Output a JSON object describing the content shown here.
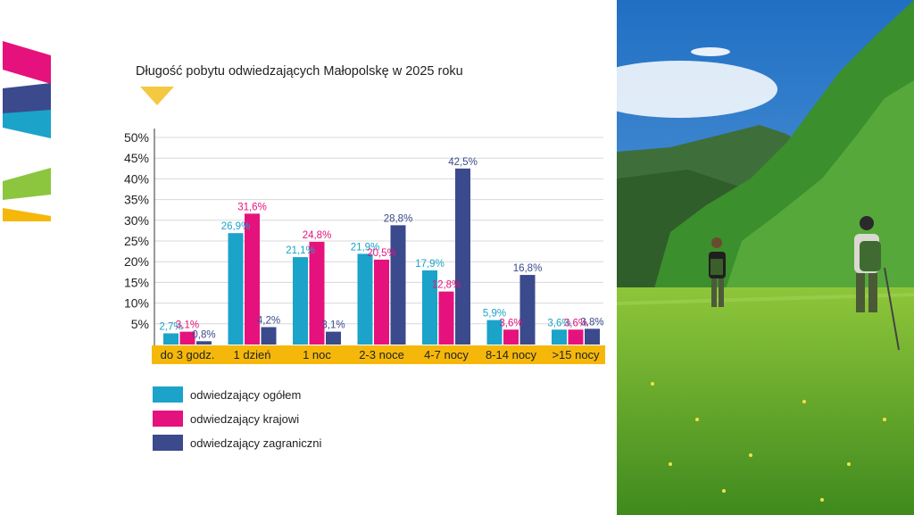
{
  "chart_data": {
    "type": "bar",
    "title": "Długość pobytu odwiedzających Małopolskę w 2025 roku",
    "categories": [
      "do 3 godz.",
      "1 dzień",
      "1 noc",
      "2-3 noce",
      "4-7 nocy",
      "8-14 nocy",
      ">15 nocy"
    ],
    "series": [
      {
        "name": "odwiedzający ogółem",
        "color": "#1ba3c9",
        "values": [
          2.7,
          26.9,
          21.1,
          21.9,
          17.9,
          5.9,
          3.6
        ],
        "labels": [
          "2,7%",
          "26,9%",
          "21,1%",
          "21,9%",
          "17,9%",
          "5,9%",
          "3,6%"
        ]
      },
      {
        "name": "odwiedzający krajowi",
        "color": "#e5127d",
        "values": [
          3.1,
          31.6,
          24.8,
          20.5,
          12.8,
          3.6,
          3.6
        ],
        "labels": [
          "3,1%",
          "31,6%",
          "24,8%",
          "20,5%",
          "12,8%",
          "3,6%",
          "3,6%"
        ]
      },
      {
        "name": "odwiedzający zagraniczni",
        "color": "#3b4a8c",
        "values": [
          0.8,
          4.2,
          3.1,
          28.8,
          42.5,
          16.8,
          3.8
        ],
        "labels": [
          "0,8%",
          "4,2%",
          "3,1%",
          "28,8%",
          "42,5%",
          "16,8%",
          "3,8%"
        ]
      }
    ],
    "y_ticks": [
      "5%",
      "10%",
      "15%",
      "20%",
      "25%",
      "30%",
      "35%",
      "40%",
      "45%",
      "50%"
    ],
    "y_tick_values": [
      5,
      10,
      15,
      20,
      25,
      30,
      35,
      40,
      45,
      50
    ],
    "ylim": [
      0,
      50
    ],
    "grid": true,
    "legend_position": "bottom-left",
    "category_band_color": "#f5b80a"
  },
  "decor": {
    "accent_colors": [
      "#e5127d",
      "#3b4a8c",
      "#1ba3c9",
      "#8cc63f",
      "#f5b80a"
    ],
    "photo_description": "hikers with backpacks walking through a green mountain meadow"
  }
}
